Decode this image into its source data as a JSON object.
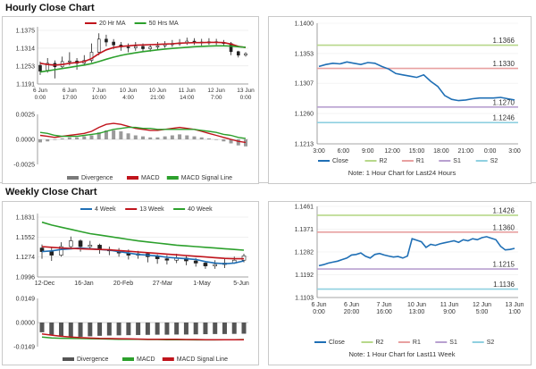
{
  "sections": {
    "hourly_title": "Hourly Close Chart",
    "weekly_title": "Weekly Close Chart"
  },
  "legends": {
    "h_price": [
      {
        "label": "20 Hr MA",
        "color": "#c0141c"
      },
      {
        "label": "50 Hrs MA",
        "color": "#2ca02c"
      }
    ],
    "h_osc": [
      {
        "label": "Divergence",
        "color": "#7a7a7a"
      },
      {
        "label": "MACD",
        "color": "#c0141c"
      },
      {
        "label": "MACD Signal Line",
        "color": "#2ca02c"
      }
    ],
    "h_pivot": [
      {
        "label": "Close",
        "color": "#1f6fb5"
      },
      {
        "label": "R2",
        "color": "#b7d88a"
      },
      {
        "label": "R1",
        "color": "#e8a0a0"
      },
      {
        "label": "S1",
        "color": "#b8a0d0"
      },
      {
        "label": "S2",
        "color": "#8fd0e0"
      }
    ],
    "w_price": [
      {
        "label": "4 Week",
        "color": "#1f6fb5"
      },
      {
        "label": "13 Week",
        "color": "#c0141c"
      },
      {
        "label": "40 Week",
        "color": "#2ca02c"
      }
    ],
    "w_osc": [
      {
        "label": "Divergence",
        "color": "#555555"
      },
      {
        "label": "MACD",
        "color": "#2ca02c"
      },
      {
        "label": "MACD Signal Line",
        "color": "#c0141c"
      }
    ],
    "w_pivot": [
      {
        "label": "Close",
        "color": "#1f6fb5"
      },
      {
        "label": "R2",
        "color": "#b7d88a"
      },
      {
        "label": "R1",
        "color": "#e8a0a0"
      },
      {
        "label": "S1",
        "color": "#b8a0d0"
      },
      {
        "label": "S2",
        "color": "#8fd0e0"
      }
    ]
  },
  "notes": {
    "hourly": "Note: 1 Hour Chart for Last24 Hours",
    "weekly": "Note: 1 Hour Chart for Last11 Week"
  },
  "chart_data": [
    {
      "id": "hourly_price",
      "type": "line",
      "yticks": [
        "1.1375",
        "1.1314",
        "1.1253",
        "1.1191"
      ],
      "ylim": [
        1.1191,
        1.1375
      ],
      "xticks": [
        "6 Jun\n0:00",
        "6 Jun\n17:00",
        "7 Jun\n10:00",
        "10 Jun\n4:00",
        "10 Jun\n21:00",
        "11 Jun\n14:00",
        "12 Jun\n7:00",
        "13 Jun\n0:00"
      ],
      "candles": [
        [
          1.1255,
          1.1235,
          1.1268,
          1.1222
        ],
        [
          1.1238,
          1.1262,
          1.128,
          1.123
        ],
        [
          1.1262,
          1.125,
          1.1272,
          1.121
        ],
        [
          1.125,
          1.1268,
          1.1285,
          1.1245
        ],
        [
          1.1268,
          1.127,
          1.13,
          1.1255
        ],
        [
          1.127,
          1.1262,
          1.128,
          1.124
        ],
        [
          1.1262,
          1.1272,
          1.129,
          1.1255
        ],
        [
          1.1272,
          1.13,
          1.133,
          1.1265
        ],
        [
          1.13,
          1.1345,
          1.1365,
          1.129
        ],
        [
          1.1345,
          1.1335,
          1.136,
          1.132
        ],
        [
          1.1335,
          1.1325,
          1.1345,
          1.131
        ],
        [
          1.1325,
          1.1318,
          1.1335,
          1.1305
        ],
        [
          1.1318,
          1.1315,
          1.133,
          1.13
        ],
        [
          1.1315,
          1.132,
          1.1335,
          1.1305
        ],
        [
          1.132,
          1.1312,
          1.133,
          1.13
        ],
        [
          1.1312,
          1.1318,
          1.1328,
          1.1302
        ],
        [
          1.1318,
          1.1322,
          1.1335,
          1.131
        ],
        [
          1.1322,
          1.1326,
          1.1338,
          1.1315
        ],
        [
          1.1326,
          1.133,
          1.1342,
          1.1318
        ],
        [
          1.133,
          1.1332,
          1.1345,
          1.1322
        ],
        [
          1.1332,
          1.1338,
          1.135,
          1.1325
        ],
        [
          1.1338,
          1.1335,
          1.1348,
          1.1325
        ],
        [
          1.1335,
          1.1332,
          1.1346,
          1.1322
        ],
        [
          1.1332,
          1.1336,
          1.1348,
          1.1325
        ],
        [
          1.1336,
          1.1334,
          1.1346,
          1.1325
        ],
        [
          1.1334,
          1.133,
          1.1342,
          1.132
        ],
        [
          1.133,
          1.1302,
          1.1335,
          1.129
        ],
        [
          1.1302,
          1.129,
          1.1305,
          1.1282
        ],
        [
          1.129,
          1.1295,
          1.13,
          1.1285
        ]
      ],
      "series": [
        {
          "name": "20 Hr MA",
          "color": "#c0141c",
          "values": [
            1.1262,
            1.1258,
            1.1256,
            1.1258,
            1.1262,
            1.1265,
            1.1268,
            1.1278,
            1.1295,
            1.1308,
            1.1316,
            1.132,
            1.1322,
            1.1324,
            1.1325,
            1.1326,
            1.1327,
            1.1328,
            1.1329,
            1.1331,
            1.1332,
            1.1333,
            1.1333,
            1.1334,
            1.1334,
            1.1333,
            1.1328,
            1.132,
            1.1316
          ]
        },
        {
          "name": "50 Hrs MA",
          "color": "#2ca02c",
          "values": [
            1.1232,
            1.1236,
            1.124,
            1.1244,
            1.1248,
            1.1252,
            1.1256,
            1.1261,
            1.1268,
            1.1276,
            1.1283,
            1.1289,
            1.1294,
            1.1298,
            1.1302,
            1.1305,
            1.1308,
            1.1311,
            1.1313,
            1.1315,
            1.1317,
            1.1319,
            1.132,
            1.1321,
            1.1322,
            1.1322,
            1.1321,
            1.1319,
            1.1317
          ]
        }
      ]
    },
    {
      "id": "hourly_macd",
      "type": "bar",
      "yticks": [
        "0.0025",
        "0.0000",
        "-0.0025"
      ],
      "ylim": [
        -0.0025,
        0.0025
      ],
      "divergence": [
        -0.0003,
        -0.0002,
        0.0,
        0.0001,
        0.0002,
        0.0002,
        0.0003,
        0.0004,
        0.0007,
        0.0009,
        0.0009,
        0.0008,
        0.0006,
        0.0004,
        0.0003,
        0.0002,
        0.0002,
        0.0003,
        0.0004,
        0.0005,
        0.0004,
        0.0003,
        0.0002,
        0.0001,
        0.0,
        -0.0002,
        -0.0004,
        -0.0006,
        -0.0007
      ],
      "series": [
        {
          "name": "MACD",
          "color": "#c0141c",
          "values": [
            0.0004,
            0.0003,
            0.0002,
            0.0003,
            0.0004,
            0.0005,
            0.0006,
            0.0008,
            0.0012,
            0.0015,
            0.0016,
            0.0015,
            0.0013,
            0.0011,
            0.001,
            0.0009,
            0.0009,
            0.001,
            0.0011,
            0.0012,
            0.0011,
            0.001,
            0.0008,
            0.0006,
            0.0004,
            0.0002,
            0.0,
            -0.0002,
            -0.0003
          ]
        },
        {
          "name": "MACD Signal Line",
          "color": "#2ca02c",
          "values": [
            0.0007,
            0.0006,
            0.0004,
            0.0003,
            0.0003,
            0.0003,
            0.0004,
            0.0005,
            0.0006,
            0.0008,
            0.001,
            0.0011,
            0.0012,
            0.0012,
            0.0011,
            0.0011,
            0.001,
            0.001,
            0.001,
            0.001,
            0.001,
            0.001,
            0.0009,
            0.0008,
            0.0007,
            0.0005,
            0.0004,
            0.0002,
            0.0001
          ]
        }
      ]
    },
    {
      "id": "hourly_pivot",
      "type": "line",
      "yticks": [
        "1.1400",
        "1.1353",
        "1.1307",
        "1.1260",
        "1.1213"
      ],
      "ylim": [
        1.1213,
        1.14
      ],
      "xticks": [
        "3:00",
        "6:00",
        "9:00",
        "12:00",
        "15:00",
        "18:00",
        "21:00",
        "0:00",
        "3:00"
      ],
      "levels": [
        {
          "name": "R2",
          "value": 1.1366,
          "label": "1.1366",
          "color": "#b7d88a"
        },
        {
          "name": "R1",
          "value": 1.133,
          "label": "1.1330",
          "color": "#e8a0a0"
        },
        {
          "name": "S1",
          "value": 1.127,
          "label": "1.1270",
          "color": "#b8a0d0"
        },
        {
          "name": "S2",
          "value": 1.1246,
          "label": "1.1246",
          "color": "#8fd0e0"
        }
      ],
      "series": [
        {
          "name": "Close",
          "color": "#1f6fb5",
          "values": [
            1.1333,
            1.1336,
            1.1338,
            1.1337,
            1.134,
            1.1338,
            1.1336,
            1.1339,
            1.1338,
            1.1333,
            1.1329,
            1.1322,
            1.132,
            1.1318,
            1.1316,
            1.132,
            1.131,
            1.1302,
            1.1288,
            1.1282,
            1.128,
            1.1281,
            1.1283,
            1.1284,
            1.1284,
            1.1284,
            1.1285,
            1.1283,
            1.1281
          ]
        }
      ]
    },
    {
      "id": "weekly_price",
      "type": "line",
      "yticks": [
        "1.1831",
        "1.1552",
        "1.1274",
        "1.0996"
      ],
      "ylim": [
        1.0996,
        1.1831
      ],
      "xticks": [
        "12-Dec",
        "16-Jan",
        "20-Feb",
        "27-Mar",
        "1-May",
        "5-Jun"
      ],
      "candles": [
        [
          1.14,
          1.135,
          1.145,
          1.125
        ],
        [
          1.135,
          1.13,
          1.142,
          1.122
        ],
        [
          1.13,
          1.142,
          1.148,
          1.128
        ],
        [
          1.142,
          1.15,
          1.156,
          1.138
        ],
        [
          1.15,
          1.142,
          1.152,
          1.135
        ],
        [
          1.142,
          1.144,
          1.15,
          1.138
        ],
        [
          1.144,
          1.138,
          1.146,
          1.132
        ],
        [
          1.138,
          1.136,
          1.142,
          1.13
        ],
        [
          1.136,
          1.133,
          1.14,
          1.128
        ],
        [
          1.133,
          1.13,
          1.138,
          1.124
        ],
        [
          1.13,
          1.132,
          1.136,
          1.125
        ],
        [
          1.132,
          1.128,
          1.134,
          1.12
        ],
        [
          1.128,
          1.125,
          1.131,
          1.118
        ],
        [
          1.125,
          1.123,
          1.13,
          1.117
        ],
        [
          1.123,
          1.126,
          1.132,
          1.119
        ],
        [
          1.126,
          1.122,
          1.13,
          1.116
        ],
        [
          1.122,
          1.119,
          1.126,
          1.114
        ],
        [
          1.119,
          1.115,
          1.122,
          1.111
        ],
        [
          1.115,
          1.117,
          1.123,
          1.111
        ],
        [
          1.117,
          1.119,
          1.125,
          1.112
        ],
        [
          1.119,
          1.123,
          1.128,
          1.118
        ],
        [
          1.123,
          1.129,
          1.132,
          1.12
        ]
      ],
      "series": [
        {
          "name": "4 Week",
          "color": "#1f6fb5",
          "values": [
            1.135,
            1.136,
            1.138,
            1.139,
            1.14,
            1.139,
            1.138,
            1.137,
            1.135,
            1.133,
            1.131,
            1.13,
            1.129,
            1.127,
            1.126,
            1.125,
            1.124,
            1.121,
            1.119,
            1.118,
            1.119,
            1.122
          ]
        },
        {
          "name": "13 Week",
          "color": "#c0141c",
          "values": [
            1.142,
            1.141,
            1.14,
            1.1395,
            1.139,
            1.1385,
            1.138,
            1.1375,
            1.1365,
            1.1355,
            1.1345,
            1.1335,
            1.1325,
            1.1315,
            1.1305,
            1.1295,
            1.1285,
            1.1275,
            1.1265,
            1.1255,
            1.125,
            1.125
          ]
        },
        {
          "name": "40 Week",
          "color": "#2ca02c",
          "values": [
            1.176,
            1.172,
            1.169,
            1.166,
            1.163,
            1.16,
            1.158,
            1.156,
            1.154,
            1.152,
            1.15,
            1.1485,
            1.147,
            1.1455,
            1.144,
            1.143,
            1.142,
            1.141,
            1.14,
            1.139,
            1.138,
            1.137
          ]
        }
      ]
    },
    {
      "id": "weekly_macd",
      "type": "bar",
      "yticks": [
        "0.0149",
        "0.0000",
        "-0.0149"
      ],
      "ylim": [
        -0.0149,
        0.0149
      ],
      "divergence": [
        -0.006,
        -0.0075,
        -0.0085,
        -0.009,
        -0.0088,
        -0.0085,
        -0.0082,
        -0.008,
        -0.0079,
        -0.0078,
        -0.0077,
        -0.0076,
        -0.0075,
        -0.0075,
        -0.0074,
        -0.0074,
        -0.0073,
        -0.0072,
        -0.0071,
        -0.0071,
        -0.007,
        -0.0069
      ],
      "series": [
        {
          "name": "MACD",
          "color": "#2ca02c",
          "values": [
            -0.009,
            -0.0095,
            -0.0097,
            -0.0098,
            -0.0099,
            -0.01,
            -0.0101,
            -0.0102,
            -0.0103,
            -0.0104,
            -0.0104,
            -0.0105,
            -0.0105,
            -0.0106,
            -0.0106,
            -0.0106,
            -0.0107,
            -0.0107,
            -0.0107,
            -0.0106,
            -0.0106,
            -0.0105
          ]
        },
        {
          "name": "MACD Signal Line",
          "color": "#c0141c",
          "values": [
            -0.007,
            -0.0078,
            -0.0085,
            -0.009,
            -0.0093,
            -0.0096,
            -0.0098,
            -0.0099,
            -0.01,
            -0.0101,
            -0.0102,
            -0.0103,
            -0.0103,
            -0.0104,
            -0.0104,
            -0.0105,
            -0.0105,
            -0.0106,
            -0.0106,
            -0.0106,
            -0.0106,
            -0.0106
          ]
        }
      ]
    },
    {
      "id": "weekly_pivot",
      "type": "line",
      "yticks": [
        "1.1461",
        "1.1371",
        "1.1282",
        "1.1192",
        "1.1103"
      ],
      "ylim": [
        1.1103,
        1.1461
      ],
      "xticks": [
        "6 Jun\n0:00",
        "6 Jun\n20:00",
        "7 Jun\n16:00",
        "10 Jun\n13:00",
        "11 Jun\n9:00",
        "12 Jun\n5:00",
        "13 Jun\n1:00"
      ],
      "levels": [
        {
          "name": "R2",
          "value": 1.1426,
          "label": "1.1426",
          "color": "#b7d88a"
        },
        {
          "name": "R1",
          "value": 1.136,
          "label": "1.1360",
          "color": "#e8a0a0"
        },
        {
          "name": "S1",
          "value": 1.1215,
          "label": "1.1215",
          "color": "#b8a0d0"
        },
        {
          "name": "S2",
          "value": 1.1136,
          "label": "1.1136",
          "color": "#8fd0e0"
        }
      ],
      "series": [
        {
          "name": "Close",
          "color": "#1f6fb5",
          "values": [
            1.1228,
            1.1232,
            1.1238,
            1.1242,
            1.1246,
            1.1252,
            1.1258,
            1.127,
            1.1272,
            1.1278,
            1.1265,
            1.1258,
            1.1272,
            1.1276,
            1.127,
            1.1266,
            1.1262,
            1.1264,
            1.1258,
            1.1266,
            1.1334,
            1.1328,
            1.1322,
            1.13,
            1.1312,
            1.1308,
            1.1314,
            1.1318,
            1.1322,
            1.1326,
            1.132,
            1.133,
            1.1326,
            1.1334,
            1.133,
            1.1338,
            1.1342,
            1.1336,
            1.133,
            1.1304,
            1.129,
            1.1292,
            1.1296
          ]
        }
      ]
    }
  ]
}
